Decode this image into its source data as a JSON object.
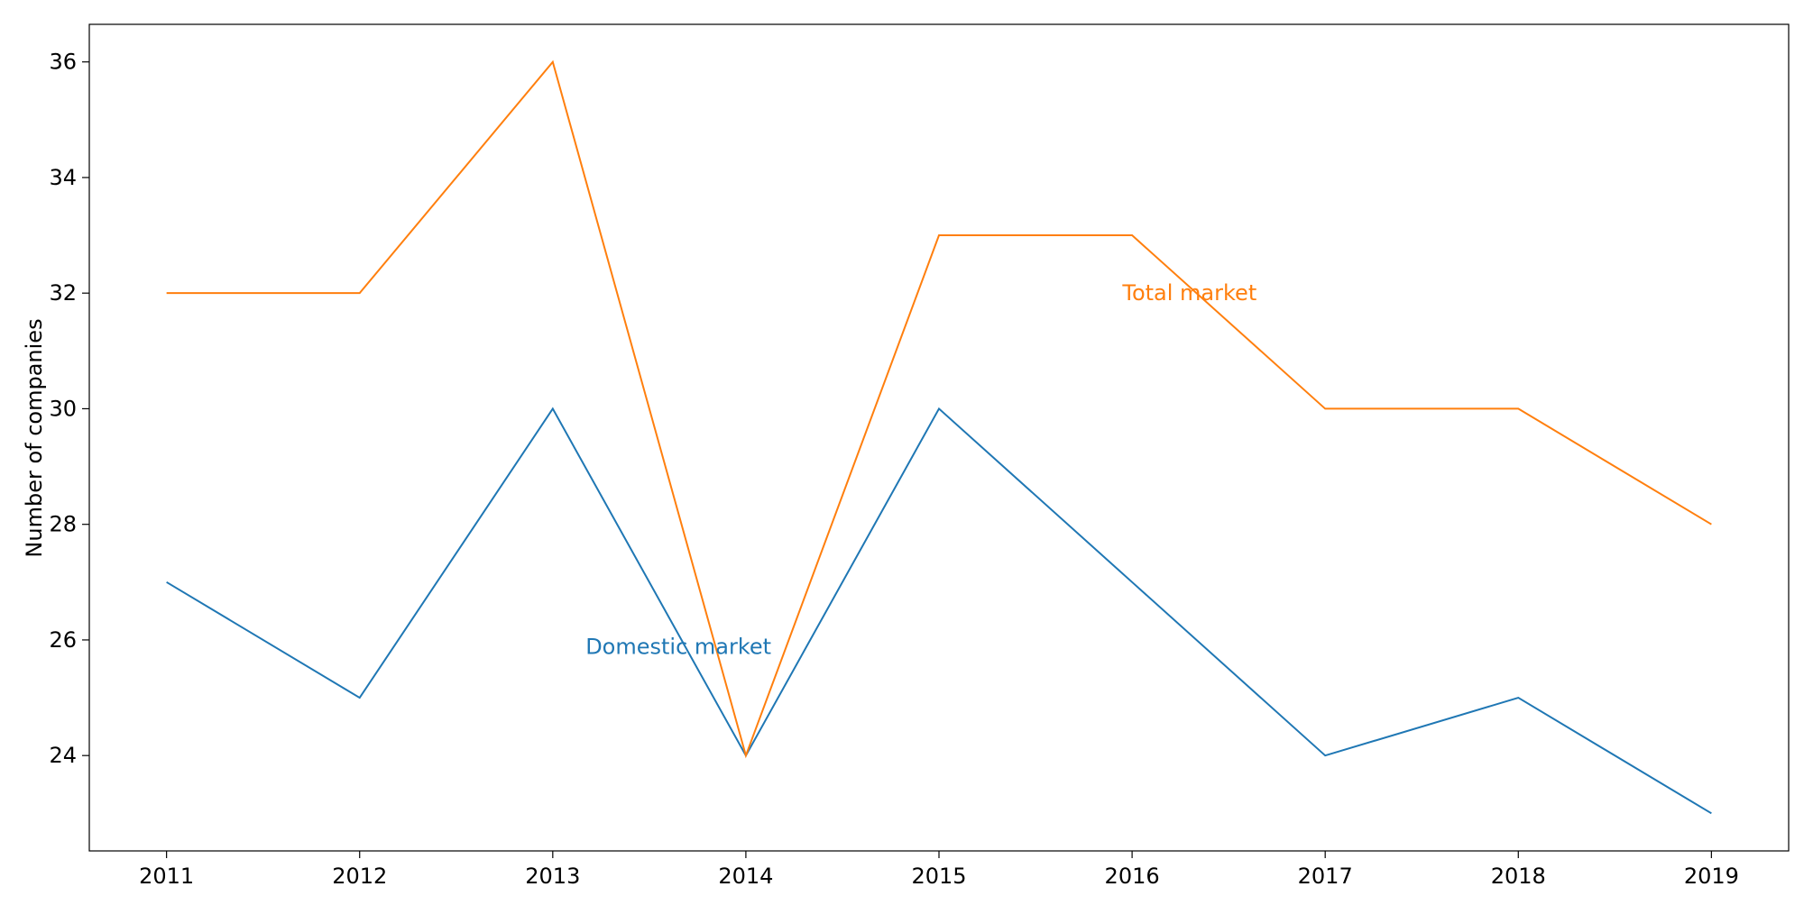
{
  "chart_data": {
    "type": "line",
    "title": "",
    "xlabel": "",
    "ylabel": "Number of companies",
    "x": [
      2011,
      2012,
      2013,
      2014,
      2015,
      2016,
      2017,
      2018,
      2019
    ],
    "xlim": [
      2010.6,
      2019.4
    ],
    "ylim": [
      22.35,
      36.65
    ],
    "yticks": [
      24,
      26,
      28,
      30,
      32,
      34,
      36
    ],
    "grid": false,
    "legend": "none",
    "series": [
      {
        "name": "Domestic market",
        "color": "#1f77b4",
        "values": [
          27,
          25,
          30,
          24,
          30,
          27,
          24,
          25,
          23
        ]
      },
      {
        "name": "Total market",
        "color": "#ff7f0e",
        "values": [
          32,
          32,
          36,
          24,
          33,
          33,
          30,
          30,
          28
        ]
      }
    ],
    "annotations": [
      {
        "text": "Domestic market",
        "x": 2013.17,
        "y": 25.88,
        "color": "#1f77b4"
      },
      {
        "text": "Total market",
        "x": 2015.95,
        "y": 32.0,
        "color": "#ff7f0e"
      }
    ]
  }
}
